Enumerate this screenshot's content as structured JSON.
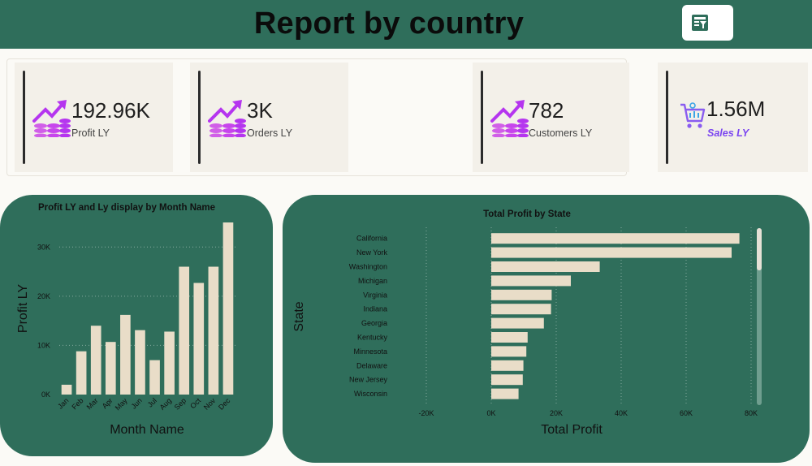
{
  "header": {
    "title": "Report by country",
    "filter_icon": "filter-report-icon"
  },
  "kpis": [
    {
      "value": "192.96K",
      "label": "Profit LY",
      "icon": "profit-growth-icon"
    },
    {
      "value": "3K",
      "label": "Orders LY",
      "icon": "profit-growth-icon"
    },
    {
      "value": "782",
      "label": "Customers LY",
      "icon": "profit-growth-icon"
    },
    {
      "value": "1.56M",
      "label": "Sales LY",
      "icon": "shopping-cart-icon"
    }
  ],
  "colors": {
    "header": "#2f6e5b",
    "bar": "#e9ddc8",
    "accent": "#7b45f0"
  },
  "chart_data": [
    {
      "type": "bar",
      "title": "Profit LY and Ly display by Month Name",
      "xlabel": "Month Name",
      "ylabel": "Profit LY",
      "categories": [
        "Jan",
        "Feb",
        "Mar",
        "Apr",
        "May",
        "Jun",
        "Jul",
        "Aug",
        "Sep",
        "Oct",
        "Nov",
        "Dec"
      ],
      "values": [
        2000,
        8800,
        14000,
        10700,
        16200,
        13100,
        7000,
        12800,
        26000,
        22700,
        26000,
        35000
      ],
      "ylim": [
        0,
        35000
      ],
      "yticks": [
        0,
        10000,
        20000,
        30000
      ],
      "ytick_labels": [
        "0K",
        "10K",
        "20K",
        "30K"
      ],
      "grid": true
    },
    {
      "type": "bar",
      "orientation": "horizontal",
      "title": "Total Profit by State",
      "xlabel": "Total Profit",
      "ylabel": "State",
      "categories": [
        "California",
        "New York",
        "Washington",
        "Michigan",
        "Virginia",
        "Indiana",
        "Georgia",
        "Kentucky",
        "Minnesota",
        "Delaware",
        "New Jersey",
        "Wisconsin"
      ],
      "values": [
        76400,
        74000,
        33400,
        24500,
        18600,
        18400,
        16200,
        11200,
        10800,
        9900,
        9700,
        8400
      ],
      "xlim": [
        -20000,
        80000
      ],
      "xticks": [
        -20000,
        0,
        20000,
        40000,
        60000,
        80000
      ],
      "xtick_labels": [
        "-20K",
        "0K",
        "20K",
        "40K",
        "60K",
        "80K"
      ],
      "grid": true
    }
  ]
}
